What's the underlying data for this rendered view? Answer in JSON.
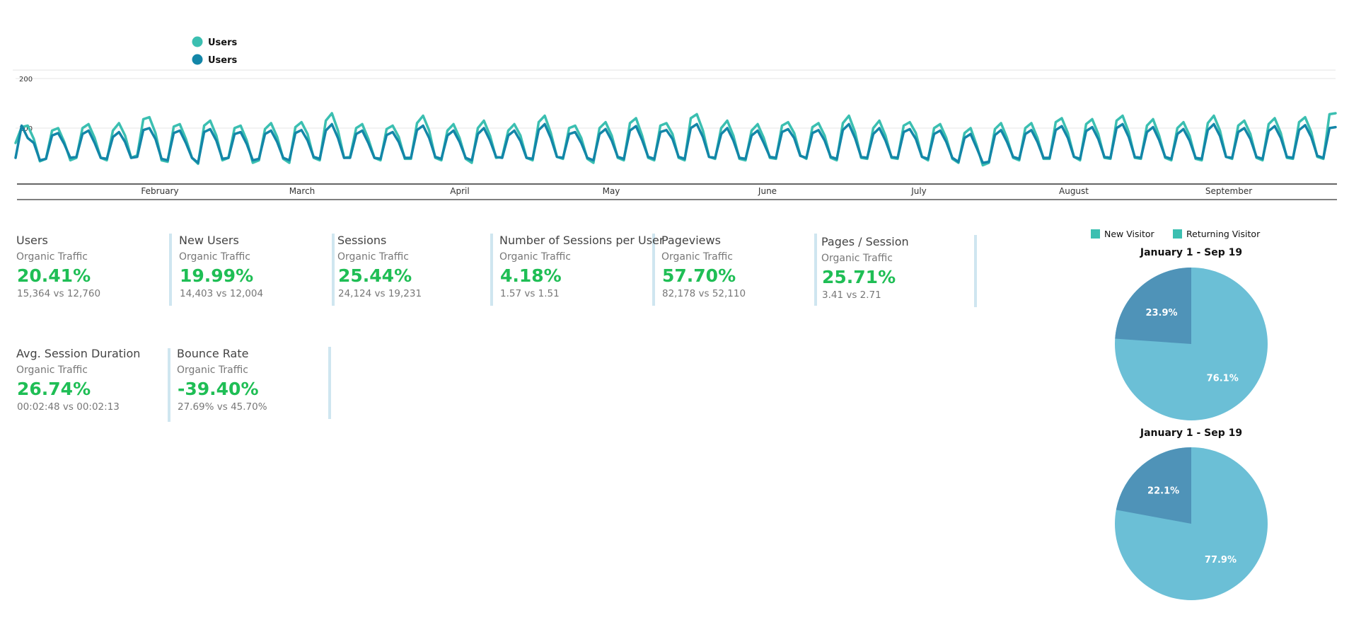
{
  "line_legend": [
    {
      "label": "Users",
      "color": "#3bbfb1"
    },
    {
      "label": "Users",
      "color": "#1386a8"
    }
  ],
  "kpis": [
    {
      "title": "Users",
      "subtitle": "Organic Traffic",
      "value": "20.41%",
      "compare": "15,364 vs 12,760"
    },
    {
      "title": "New Users",
      "subtitle": "Organic Traffic",
      "value": "19.99%",
      "compare": "14,403 vs 12,004"
    },
    {
      "title": "Sessions",
      "subtitle": "Organic Traffic",
      "value": "25.44%",
      "compare": "24,124 vs 19,231"
    },
    {
      "title": "Number of Sessions per User",
      "subtitle": "Organic Traffic",
      "value": "4.18%",
      "compare": "1.57 vs 1.51"
    },
    {
      "title": "Pageviews",
      "subtitle": "Organic Traffic",
      "value": "57.70%",
      "compare": "82,178 vs 52,110"
    },
    {
      "title": "Pages / Session",
      "subtitle": "Organic Traffic",
      "value": "25.71%",
      "compare": "3.41 vs 2.71"
    },
    {
      "title": "Avg. Session Duration",
      "subtitle": "Organic Traffic",
      "value": "26.74%",
      "compare": "00:02:48 vs 00:02:13"
    },
    {
      "title": "Bounce Rate",
      "subtitle": "Organic Traffic",
      "value": "-39.40%",
      "compare": "27.69% vs 45.70%"
    }
  ],
  "pie_legend": [
    {
      "label": "New Visitor",
      "color": "#3bbfb1"
    },
    {
      "label": "Returning Visitor",
      "color": "#3bbfb1"
    }
  ],
  "colors": {
    "positive": "#1fbe55",
    "series_current": "#3bbfb1",
    "series_previous": "#1386a8",
    "pie_large": "#6bbfd6",
    "pie_small": "#4f93b8",
    "divider": "#cfe6f0"
  },
  "chart_data": [
    {
      "type": "line",
      "title": "",
      "xlabel": "",
      "ylabel": "",
      "ylim": [
        0,
        200
      ],
      "yticks": [
        200,
        100
      ],
      "x_tick_labels": [
        "February",
        "March",
        "April",
        "May",
        "June",
        "July",
        "August",
        "September"
      ],
      "grid": true,
      "legend": "top-left",
      "series": [
        {
          "name": "Users",
          "color": "#3bbfb1",
          "values": [
            70,
            102,
            105,
            78,
            33,
            38,
            95,
            100,
            72,
            35,
            40,
            100,
            108,
            80,
            40,
            35,
            95,
            110,
            85,
            40,
            45,
            118,
            122,
            90,
            35,
            32,
            103,
            108,
            78,
            40,
            28,
            105,
            115,
            85,
            35,
            40,
            100,
            105,
            75,
            30,
            35,
            98,
            110,
            82,
            38,
            30,
            102,
            112,
            88,
            40,
            35,
            115,
            130,
            95,
            40,
            42,
            100,
            108,
            78,
            40,
            35,
            98,
            105,
            82,
            38,
            38,
            110,
            125,
            95,
            40,
            35,
            95,
            108,
            80,
            38,
            30,
            100,
            115,
            85,
            40,
            42,
            95,
            108,
            85,
            40,
            35,
            112,
            125,
            90,
            42,
            38,
            100,
            105,
            80,
            38,
            30,
            100,
            112,
            85,
            40,
            35,
            110,
            120,
            85,
            40,
            35,
            105,
            110,
            88,
            40,
            35,
            120,
            128,
            95,
            42,
            38,
            100,
            115,
            85,
            38,
            35,
            95,
            108,
            80,
            40,
            38,
            105,
            112,
            90,
            45,
            38,
            102,
            110,
            85,
            40,
            35,
            110,
            125,
            92,
            40,
            38,
            100,
            115,
            85,
            40,
            38,
            105,
            112,
            90,
            42,
            35,
            100,
            108,
            80,
            38,
            30,
            90,
            100,
            65,
            25,
            30,
            98,
            110,
            80,
            40,
            35,
            100,
            110,
            80,
            38,
            38,
            112,
            120,
            90,
            42,
            35,
            108,
            118,
            88,
            40,
            38,
            115,
            125,
            92,
            40,
            38,
            105,
            118,
            85,
            40,
            35,
            100,
            112,
            85,
            38,
            35,
            110,
            125,
            95,
            42,
            38,
            105,
            115,
            88,
            40,
            35,
            108,
            120,
            90,
            40,
            38,
            112,
            122,
            92,
            42,
            38,
            128,
            130
          ]
        },
        {
          "name": "Users",
          "color": "#1386a8",
          "values": [
            40,
            105,
            80,
            70,
            35,
            38,
            85,
            90,
            68,
            40,
            42,
            88,
            95,
            70,
            40,
            38,
            82,
            92,
            72,
            40,
            42,
            96,
            100,
            78,
            38,
            35,
            90,
            95,
            70,
            40,
            30,
            92,
            98,
            75,
            38,
            40,
            88,
            92,
            68,
            35,
            38,
            88,
            95,
            72,
            40,
            35,
            90,
            96,
            75,
            42,
            38,
            95,
            108,
            80,
            40,
            40,
            88,
            95,
            70,
            40,
            38,
            86,
            92,
            72,
            40,
            40,
            96,
            105,
            80,
            42,
            38,
            85,
            95,
            72,
            40,
            35,
            88,
            100,
            75,
            42,
            40,
            85,
            95,
            74,
            40,
            38,
            96,
            108,
            80,
            42,
            40,
            88,
            92,
            70,
            40,
            35,
            88,
            98,
            75,
            42,
            38,
            95,
            104,
            76,
            42,
            38,
            92,
            96,
            78,
            42,
            38,
            100,
            108,
            82,
            42,
            40,
            88,
            100,
            75,
            40,
            38,
            85,
            95,
            70,
            42,
            40,
            92,
            98,
            80,
            44,
            40,
            90,
            96,
            75,
            42,
            38,
            96,
            108,
            80,
            42,
            40,
            88,
            100,
            75,
            42,
            40,
            92,
            98,
            78,
            42,
            38,
            88,
            95,
            72,
            40,
            32,
            80,
            88,
            60,
            30,
            32,
            86,
            96,
            72,
            42,
            38,
            88,
            96,
            72,
            40,
            40,
            96,
            104,
            80,
            42,
            38,
            94,
            102,
            78,
            42,
            40,
            100,
            108,
            82,
            42,
            40,
            92,
            102,
            76,
            42,
            38,
            88,
            98,
            75,
            40,
            38,
            96,
            108,
            84,
            42,
            40,
            92,
            100,
            78,
            42,
            38,
            94,
            104,
            80,
            42,
            40,
            96,
            106,
            82,
            44,
            40,
            100,
            102
          ]
        }
      ]
    },
    {
      "type": "pie",
      "title": "January 1 - Sep 19",
      "legend": "top",
      "labels": [
        "New Visitor",
        "Returning Visitor"
      ],
      "values": [
        76.1,
        23.9
      ],
      "value_labels": [
        "76.1%",
        "23.9%"
      ]
    },
    {
      "type": "pie",
      "title": "January 1 - Sep 19",
      "legend": "top",
      "labels": [
        "New Visitor",
        "Returning Visitor"
      ],
      "values": [
        77.9,
        22.1
      ],
      "value_labels": [
        "77.9%",
        "22.1%"
      ]
    }
  ]
}
